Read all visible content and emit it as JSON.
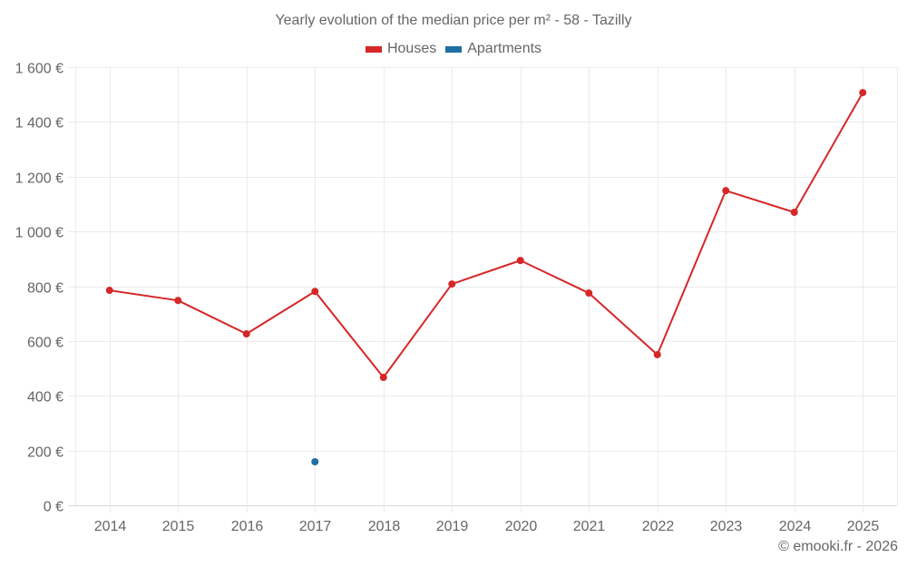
{
  "header": {
    "title": "Yearly evolution of the median price per m² - 58 - Tazilly"
  },
  "legend": [
    {
      "label": "Houses",
      "color": "#d62728"
    },
    {
      "label": "Apartments",
      "color": "#1f6fa3"
    }
  ],
  "footer": {
    "credit": "© emooki.fr - 2026"
  },
  "chart_data": {
    "type": "line",
    "title": "Yearly evolution of the median price per m² - 58 - Tazilly",
    "xlabel": "",
    "ylabel": "",
    "categories": [
      "2014",
      "2015",
      "2016",
      "2017",
      "2018",
      "2019",
      "2020",
      "2021",
      "2022",
      "2023",
      "2024",
      "2025"
    ],
    "ylim": [
      0,
      1600
    ],
    "yticks": [
      0,
      200,
      400,
      600,
      800,
      1000,
      1200,
      1400,
      1600
    ],
    "ytick_labels": [
      "0 €",
      "200 €",
      "400 €",
      "600 €",
      "800 €",
      "1 000 €",
      "1 200 €",
      "1 400 €",
      "1 600 €"
    ],
    "grid": true,
    "legend_position": "top",
    "series": [
      {
        "name": "Houses",
        "color": "#d62728",
        "values": [
          785,
          748,
          626,
          781,
          467,
          808,
          894,
          775,
          550,
          1149,
          1070,
          1507
        ]
      },
      {
        "name": "Apartments",
        "color": "#1f6fa3",
        "values": [
          null,
          null,
          null,
          159,
          null,
          null,
          null,
          null,
          null,
          null,
          null,
          null
        ]
      }
    ]
  }
}
